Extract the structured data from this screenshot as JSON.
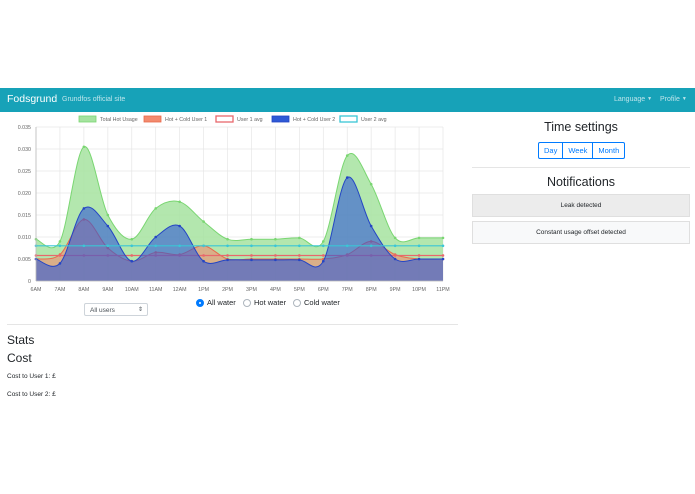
{
  "navbar": {
    "brand": "Fodsgrund",
    "link": "Grundfos official site",
    "language": "Language",
    "profile": "Profile"
  },
  "chart_data": {
    "type": "area",
    "categories": [
      "6AM",
      "7AM",
      "8AM",
      "9AM",
      "10AM",
      "11AM",
      "12AM",
      "1PM",
      "2PM",
      "3PM",
      "4PM",
      "5PM",
      "6PM",
      "7PM",
      "8PM",
      "9PM",
      "10PM",
      "11PM"
    ],
    "ylim": [
      0,
      0.035
    ],
    "yticks": [
      "0",
      "0.005",
      "0.010",
      "0.015",
      "0.020",
      "0.025",
      "0.030",
      "0.035"
    ],
    "grid": true,
    "legend_position": "top",
    "series": [
      {
        "name": "Total Hot Usage",
        "kind": "area",
        "fill": "#a6e3a0",
        "stroke": "#7ad672",
        "values": [
          0.0095,
          0.009,
          0.0305,
          0.015,
          0.0095,
          0.0165,
          0.018,
          0.0135,
          0.0095,
          0.0095,
          0.0095,
          0.0098,
          0.009,
          0.0285,
          0.022,
          0.0098,
          0.0098,
          0.0098
        ]
      },
      {
        "name": "Hot + Cold User 1",
        "kind": "area",
        "fill": "#f28b6f",
        "stroke": "#e96a4b",
        "values": [
          0.005,
          0.006,
          0.014,
          0.0075,
          0.0045,
          0.0065,
          0.006,
          0.008,
          0.005,
          0.005,
          0.005,
          0.005,
          0.005,
          0.006,
          0.009,
          0.006,
          0.005,
          0.005
        ]
      },
      {
        "name": "User 1 avg",
        "kind": "line",
        "fill": "#ffffff",
        "stroke": "#e8686c",
        "values": [
          0.0058,
          0.0058,
          0.0058,
          0.0058,
          0.0058,
          0.0058,
          0.0058,
          0.0058,
          0.0058,
          0.0058,
          0.0058,
          0.0058,
          0.0058,
          0.0058,
          0.0058,
          0.0058,
          0.0058,
          0.0058
        ]
      },
      {
        "name": "Hot + Cold User 2",
        "kind": "area",
        "fill": "#2e59d6",
        "stroke": "#2445c4",
        "values": [
          0.005,
          0.004,
          0.0165,
          0.0125,
          0.0045,
          0.01,
          0.0125,
          0.0045,
          0.0048,
          0.0048,
          0.0048,
          0.0048,
          0.0045,
          0.0235,
          0.0125,
          0.005,
          0.005,
          0.005
        ]
      },
      {
        "name": "User 2 avg",
        "kind": "line",
        "fill": "#ffffff",
        "stroke": "#3ac6d6",
        "values": [
          0.008,
          0.008,
          0.008,
          0.008,
          0.008,
          0.008,
          0.008,
          0.008,
          0.008,
          0.008,
          0.008,
          0.008,
          0.008,
          0.008,
          0.008,
          0.008,
          0.008,
          0.008
        ]
      }
    ]
  },
  "filter": {
    "user_select": "All users",
    "radios": [
      {
        "label": "All water",
        "checked": true
      },
      {
        "label": "Hot water",
        "checked": false
      },
      {
        "label": "Cold water",
        "checked": false
      }
    ]
  },
  "stats": {
    "heading": "Stats",
    "cost_heading": "Cost",
    "cost_user1": "Cost to User 1: £",
    "cost_user2": "Cost to User 2: £"
  },
  "time_settings": {
    "heading": "Time settings",
    "buttons": [
      "Day",
      "Week",
      "Month"
    ]
  },
  "notifications": {
    "heading": "Notifications",
    "items": [
      "Leak detected",
      "Constant usage offset detected"
    ]
  }
}
